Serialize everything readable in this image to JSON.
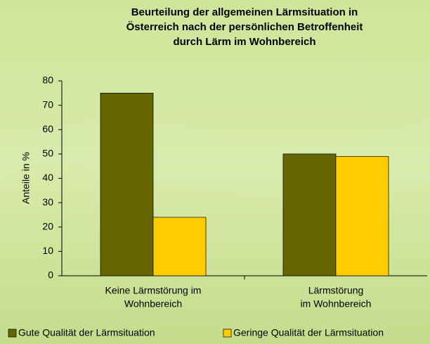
{
  "chart_data": {
    "type": "bar",
    "title": [
      "Beurteilung der allgemeinen Lärmsituation in",
      "Österreich nach der persönlichen Betroffenheit",
      "durch Lärm im Wohnbereich"
    ],
    "y_label": "Anteile in %",
    "categories": [
      [
        "Keine Lärmstörung im",
        "Wohnbereich"
      ],
      [
        "Lärmstörung",
        "im Wohnbereich"
      ]
    ],
    "series": [
      {
        "name": "Gute Qualität der Lärmsituation",
        "color": "#666600",
        "values": [
          75,
          50
        ]
      },
      {
        "name": "Geringe Qualität der Lärmsituation",
        "color": "#ffcc00",
        "values": [
          24,
          49
        ]
      }
    ],
    "ylim": [
      0,
      80
    ],
    "yticks": [
      0,
      10,
      20,
      30,
      40,
      50,
      60,
      70,
      80
    ]
  }
}
